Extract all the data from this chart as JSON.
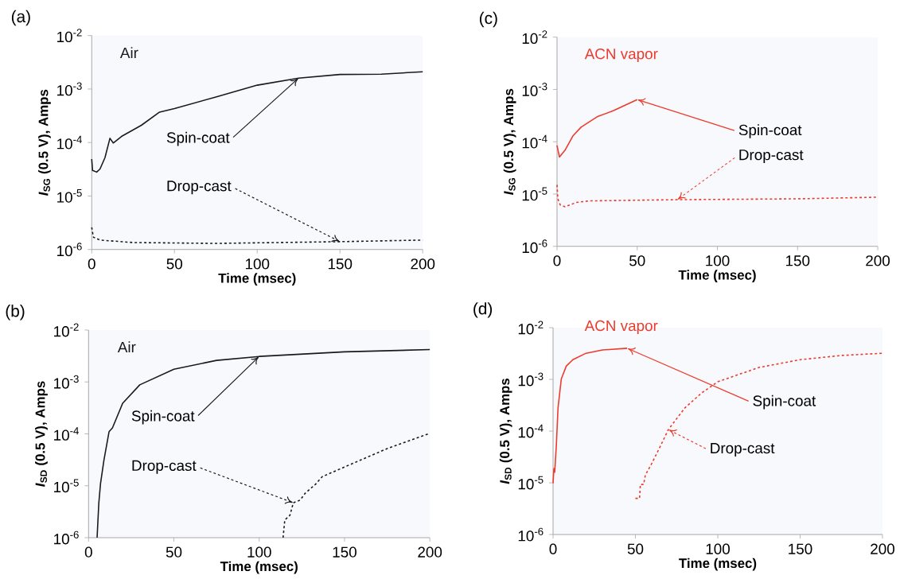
{
  "chart_data": [
    {
      "type": "line",
      "title": "(a)",
      "xlabel": "Time (msec)",
      "ylabel": "*I*$_{SG}$ (0.5 V), Amps",
      "log": "y",
      "xlim": [
        0,
        200
      ],
      "xticks": [
        0,
        50,
        100,
        150,
        200
      ],
      "ylim": [
        1e-06,
        0.01
      ],
      "yticks": [
        {
          "value": 1e-06,
          "label": "10$^{-6}$"
        },
        {
          "value": 1e-05,
          "label": "10$^{-5}$"
        },
        {
          "value": 0.0001,
          "label": "10$^{-4}$"
        },
        {
          "value": 0.001,
          "label": "10$^{-3}$"
        },
        {
          "value": 0.01,
          "label": "10$^{-2}$"
        }
      ],
      "annotations": [
        "Air"
      ],
      "series": [
        {
          "name": "Spin-coat",
          "color": "#1a1a1a",
          "line_style": "solid",
          "x": [
            0,
            0.5,
            3,
            5,
            8,
            11,
            13,
            18,
            30,
            41,
            50,
            75,
            100,
            125,
            150,
            175,
            200
          ],
          "values": [
            4.9e-05,
            3e-05,
            2.8e-05,
            3.2e-05,
            5.2e-05,
            0.00012,
            9.8e-05,
            0.00013,
            0.00021,
            0.00037,
            0.00043,
            0.00071,
            0.00118,
            0.0016,
            0.00187,
            0.0019,
            0.0021
          ]
        },
        {
          "name": "Drop-cast",
          "color": "#1a1a1a",
          "line_style": "dashed",
          "x": [
            0,
            1,
            5,
            25,
            75,
            150,
            200
          ],
          "values": [
            2.6e-06,
            1.7e-06,
            1.5e-06,
            1.35e-06,
            1.3e-06,
            1.4e-06,
            1.5e-06
          ]
        }
      ]
    },
    {
      "type": "line",
      "title": "(c)",
      "xlabel": "Time (msec)",
      "ylabel": "*I*$_{SG}$ (0.5 V), Amps",
      "log": "y",
      "xlim": [
        0,
        200
      ],
      "xticks": [
        0,
        50,
        100,
        150,
        200
      ],
      "ylim": [
        1e-06,
        0.01
      ],
      "yticks": [
        {
          "value": 1e-06,
          "label": "10$^{-6}$"
        },
        {
          "value": 1e-05,
          "label": "10$^{-5}$"
        },
        {
          "value": 0.0001,
          "label": "10$^{-4}$"
        },
        {
          "value": 0.001,
          "label": "10$^{-3}$"
        },
        {
          "value": 0.01,
          "label": "10$^{-2}$"
        }
      ],
      "annotations": [
        "ACN vapor"
      ],
      "series": [
        {
          "name": "Spin-coat",
          "color": "#ee3a2c",
          "line_style": "solid",
          "x": [
            0,
            1.5,
            5,
            10,
            15,
            25,
            35,
            50
          ],
          "values": [
            8.5e-05,
            5.1e-05,
            6.9e-05,
            0.00013,
            0.00019,
            0.0003,
            0.00039,
            0.00064
          ]
        },
        {
          "name": "Drop-cast",
          "color": "#ee3a2c",
          "line_style": "dashed",
          "x": [
            0,
            0.5,
            2,
            5,
            12,
            20,
            75,
            150,
            200
          ],
          "values": [
            1.5e-05,
            8.1e-06,
            6.2e-06,
            5.7e-06,
            6.9e-06,
            7.4e-06,
            7.8e-06,
            8.1e-06,
            8.7e-06
          ]
        }
      ]
    },
    {
      "type": "line",
      "title": "(b)",
      "xlabel": "Time (msec)",
      "ylabel": "*I*$_{SD}$ (0.5 V), Amps",
      "log": "y",
      "xlim": [
        0,
        200
      ],
      "xticks": [
        0,
        50,
        100,
        150,
        200
      ],
      "ylim": [
        1e-06,
        0.01
      ],
      "yticks": [
        {
          "value": 1e-06,
          "label": "10$^{-6}$"
        },
        {
          "value": 1e-05,
          "label": "10$^{-5}$"
        },
        {
          "value": 0.0001,
          "label": "10$^{-4}$"
        },
        {
          "value": 0.001,
          "label": "10$^{-3}$"
        },
        {
          "value": 0.01,
          "label": "10$^{-2}$"
        }
      ],
      "annotations": [
        "Air"
      ],
      "series": [
        {
          "name": "Spin-coat",
          "color": "#1a1a1a",
          "line_style": "solid",
          "x": [
            5,
            6,
            7,
            9,
            12,
            14,
            20,
            30,
            50,
            75,
            100,
            150,
            200
          ],
          "values": [
            1e-06,
            4.6e-06,
            1.1e-05,
            3.1e-05,
            0.00011,
            0.00013,
            0.00039,
            0.00088,
            0.00176,
            0.0026,
            0.0031,
            0.0038,
            0.0042
          ]
        },
        {
          "name": "Drop-cast",
          "color": "#1a1a1a",
          "line_style": "dashed",
          "x": [
            114,
            115,
            118,
            120,
            124,
            127,
            133,
            137,
            150,
            175,
            200
          ],
          "values": [
            1e-06,
            2.2e-06,
            2.7e-06,
            4.7e-06,
            5.3e-06,
            7.2e-06,
            1.07e-05,
            1.5e-05,
            2.3e-05,
            5.2e-05,
            0.000102
          ]
        }
      ]
    },
    {
      "type": "line",
      "title": "(d)",
      "xlabel": "Time (msec)",
      "ylabel": "*I*$_{SD}$ (0.5 V), Amps",
      "log": "y",
      "xlim": [
        0,
        200
      ],
      "xticks": [
        0,
        50,
        100,
        150,
        200
      ],
      "ylim": [
        1e-06,
        0.01
      ],
      "yticks": [
        {
          "value": 1e-06,
          "label": "10$^{-6}$"
        },
        {
          "value": 1e-05,
          "label": "10$^{-5}$"
        },
        {
          "value": 0.0001,
          "label": "10$^{-4}$"
        },
        {
          "value": 0.001,
          "label": "10$^{-3}$"
        },
        {
          "value": 0.01,
          "label": "10$^{-2}$"
        }
      ],
      "annotations": [
        "ACN vapor"
      ],
      "series": [
        {
          "name": "Spin-coat",
          "color": "#ee3a2c",
          "line_style": "solid",
          "x": [
            0,
            0.5,
            1,
            2,
            3,
            5,
            8,
            12,
            20,
            30,
            45
          ],
          "values": [
            9.8e-06,
            1.9e-05,
            1.6e-05,
            5.4e-05,
            0.00028,
            0.00102,
            0.0018,
            0.0024,
            0.0032,
            0.0037,
            0.004
          ]
        },
        {
          "name": "Drop-cast",
          "color": "#ee3a2c",
          "line_style": "dashed",
          "x": [
            50,
            52.5,
            53,
            55,
            56,
            60,
            65,
            70,
            80,
            90,
            100,
            125,
            150,
            175,
            200
          ],
          "values": [
            5e-06,
            5e-06,
            9.3e-06,
            9.3e-06,
            1.4e-05,
            2.4e-05,
            5e-05,
            0.000107,
            0.00028,
            0.00054,
            0.0009,
            0.0017,
            0.0024,
            0.0029,
            0.0032
          ]
        }
      ]
    }
  ]
}
